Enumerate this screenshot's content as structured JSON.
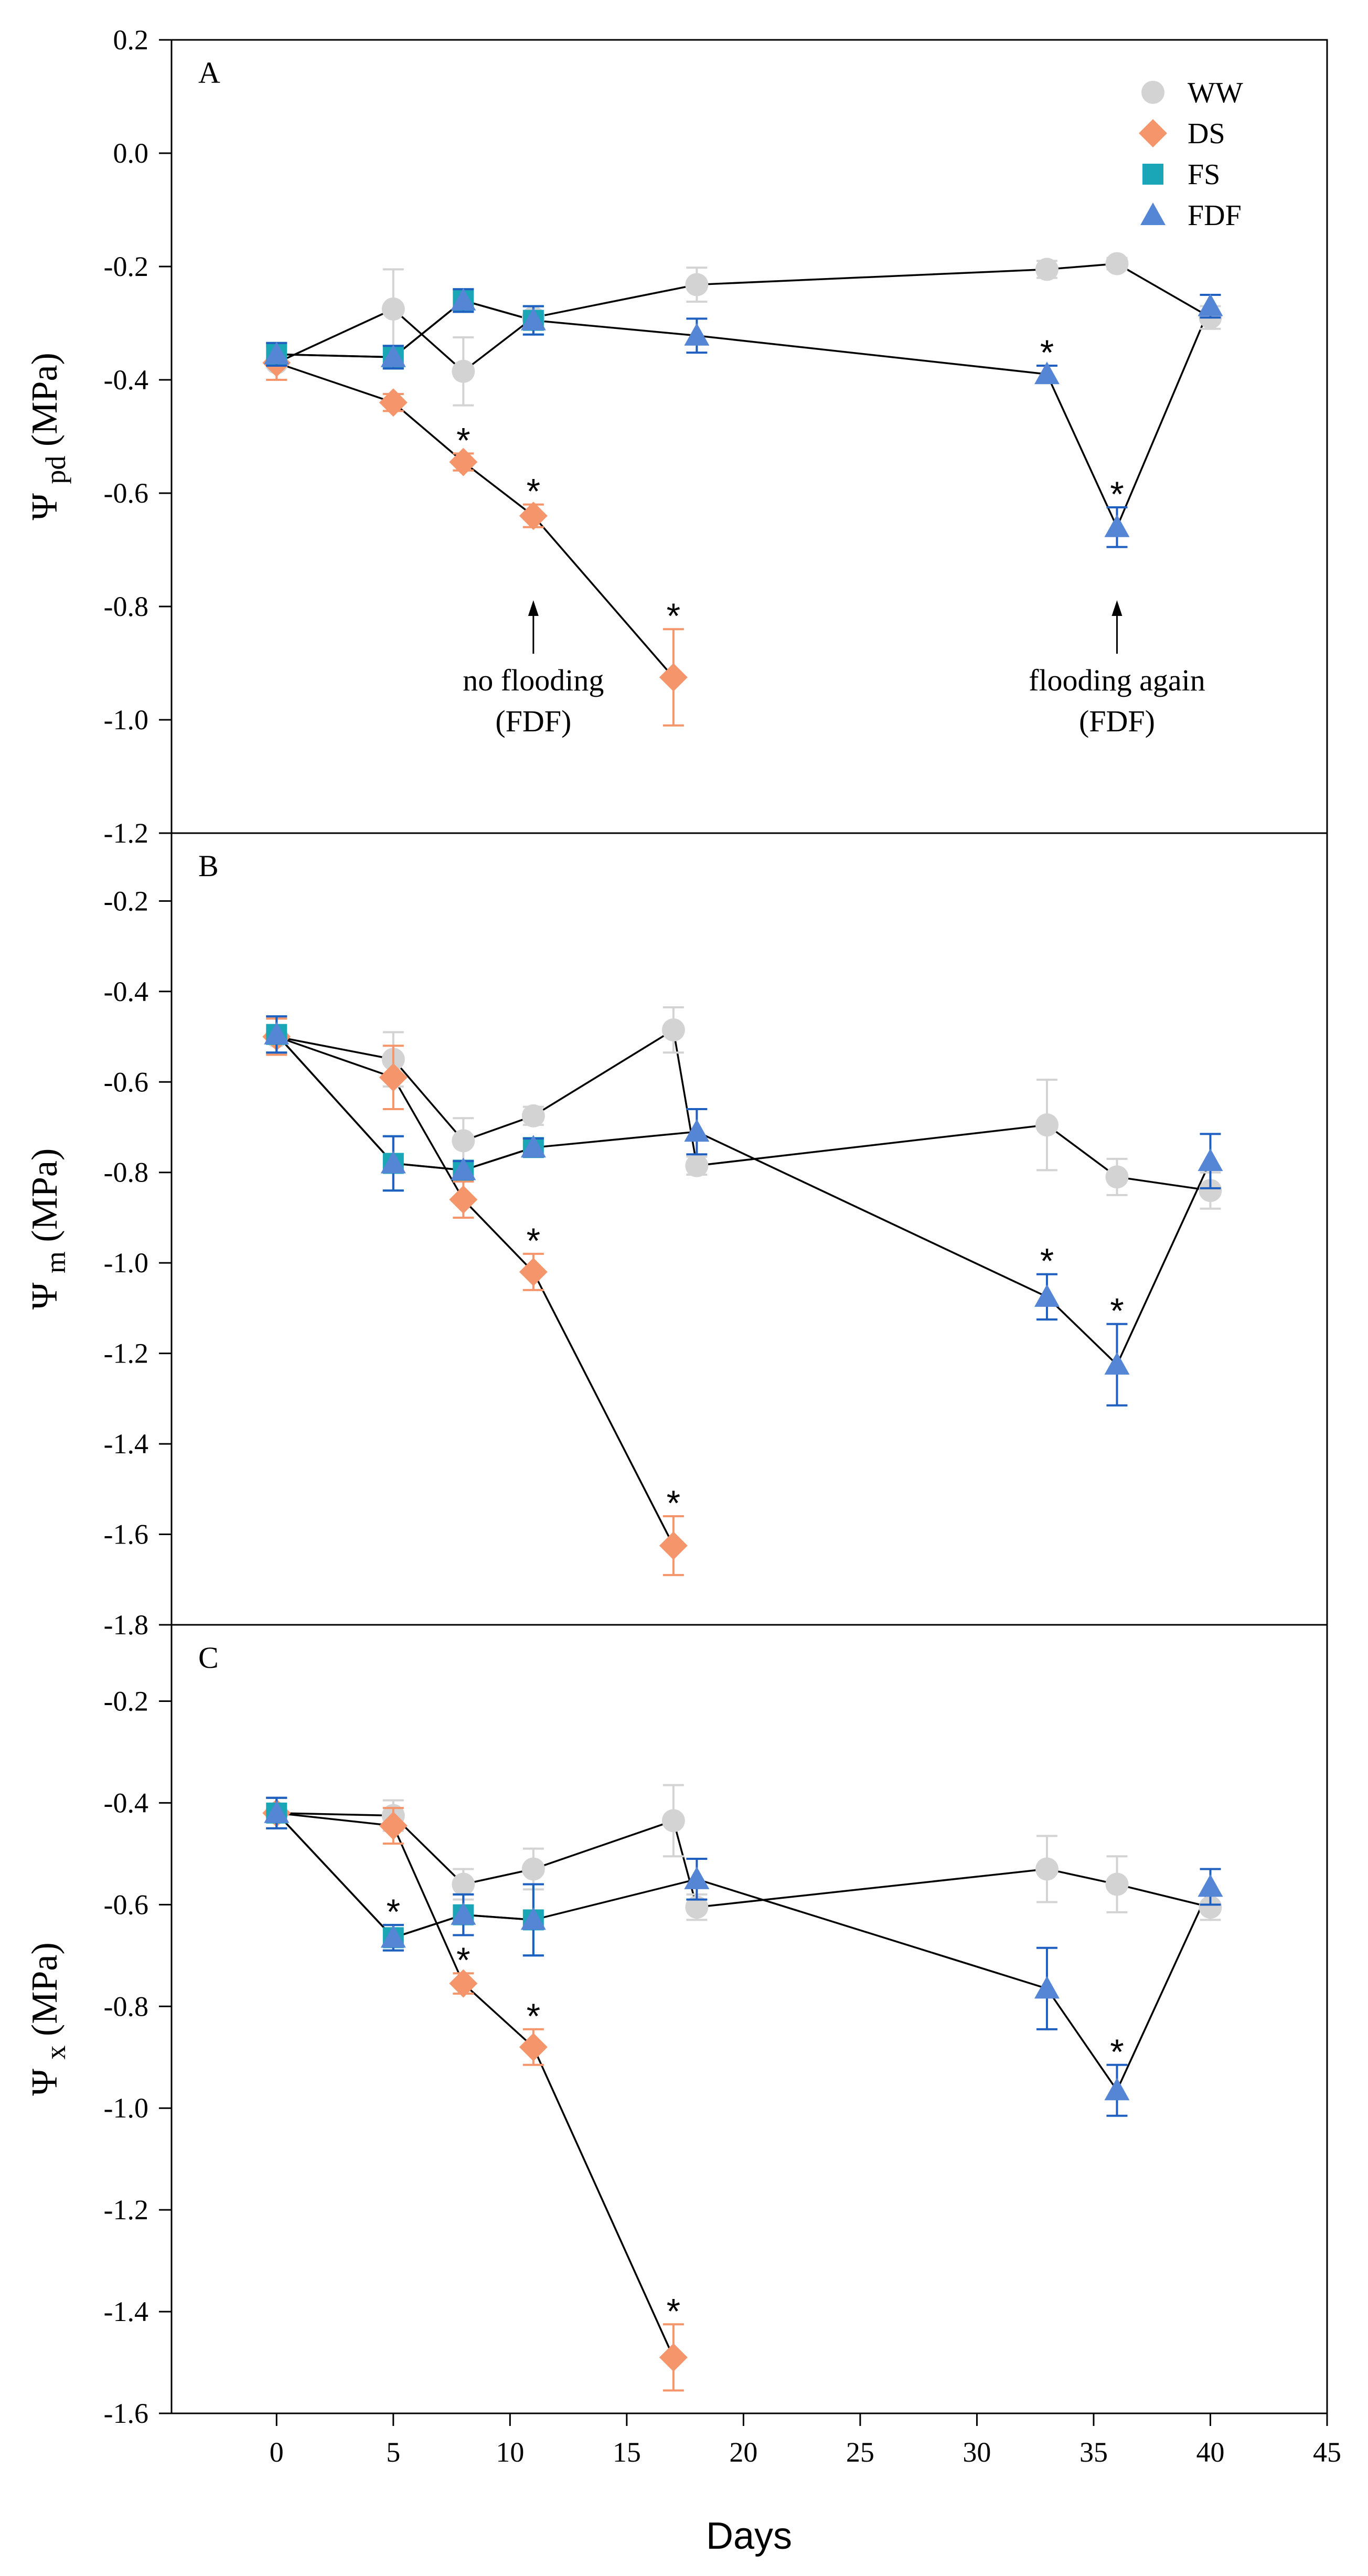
{
  "chart_data": {
    "type": "line",
    "xlabel": "Days",
    "xlim": [
      -4.5,
      45
    ],
    "xticks": [
      0,
      5,
      10,
      15,
      20,
      25,
      30,
      35,
      40,
      45
    ],
    "xtick_labels": [
      "0",
      "5",
      "10",
      "15",
      "20",
      "25",
      "30",
      "35",
      "40",
      "45"
    ],
    "legend": {
      "placement": "top-right of panel A",
      "entries": [
        {
          "key": "WW",
          "label": "WW",
          "marker": "circle",
          "color": "#d3d3d3"
        },
        {
          "key": "DS",
          "label": "DS",
          "marker": "diamond",
          "color": "#f4956b"
        },
        {
          "key": "FS",
          "label": "FS",
          "marker": "square",
          "color": "#1aa6b7"
        },
        {
          "key": "FDF",
          "label": "FDF",
          "marker": "triangle",
          "color": "#5585d5"
        }
      ]
    },
    "panels": [
      {
        "id": "A",
        "letter": "A",
        "ylabel_main": "Ψ",
        "ylabel_sub": "pd",
        "ylabel_unit": "(MPa)",
        "ylim": [
          -1.2,
          0.2
        ],
        "yticks": [
          0.2,
          0.0,
          -0.2,
          -0.4,
          -0.6,
          -0.8,
          -1.0,
          -1.2
        ],
        "ytick_labels": [
          "0.2",
          "0.0",
          "-0.2",
          "-0.4",
          "-0.6",
          "-0.8",
          "-1.0",
          "-1.2"
        ],
        "series": [
          {
            "key": "WW",
            "x": [
              0,
              5,
              8,
              11,
              18,
              33,
              36,
              40
            ],
            "y": [
              -0.37,
              -0.275,
              -0.385,
              -0.29,
              -0.232,
              -0.205,
              -0.195,
              -0.29
            ],
            "err": [
              0.03,
              0.07,
              0.06,
              0.02,
              0.03,
              0.015,
              0.01,
              0.02
            ]
          },
          {
            "key": "DS",
            "x": [
              0,
              5,
              8,
              11,
              17
            ],
            "y": [
              -0.37,
              -0.44,
              -0.545,
              -0.64,
              -0.925
            ],
            "err": [
              0.03,
              0.015,
              0.015,
              0.02,
              0.085
            ]
          },
          {
            "key": "FS",
            "x": [
              0,
              5,
              8,
              11
            ],
            "y": [
              -0.355,
              -0.36,
              -0.26,
              -0.295
            ],
            "err": [
              0.02,
              0.02,
              0.02,
              0.025
            ]
          },
          {
            "key": "FDF",
            "x": [
              0,
              5,
              8,
              11,
              18,
              33,
              36,
              40
            ],
            "y": [
              -0.355,
              -0.36,
              -0.26,
              -0.295,
              -0.322,
              -0.39,
              -0.66,
              -0.27
            ],
            "err": [
              0.02,
              0.02,
              0.02,
              0.025,
              0.03,
              0.015,
              0.035,
              0.02
            ]
          }
        ],
        "stars": [
          {
            "x": 8,
            "y": -0.545
          },
          {
            "x": 11,
            "y": -0.64
          },
          {
            "x": 17,
            "y": -0.925
          },
          {
            "x": 33,
            "y": -0.39
          },
          {
            "x": 36,
            "y": -0.66
          }
        ],
        "annotations": [
          {
            "x": 11,
            "line1": "no flooding",
            "line2": "(FDF)"
          },
          {
            "x": 36,
            "line1": "flooding again",
            "line2": "(FDF)"
          }
        ]
      },
      {
        "id": "B",
        "letter": "B",
        "ylabel_main": "Ψ",
        "ylabel_sub": "m",
        "ylabel_unit": "(MPa)",
        "ylim": [
          -1.8,
          -0.05
        ],
        "yticks": [
          -0.2,
          -0.4,
          -0.6,
          -0.8,
          -1.0,
          -1.2,
          -1.4,
          -1.6,
          -1.8
        ],
        "ytick_labels": [
          "-0.2",
          "-0.4",
          "-0.6",
          "-0.8",
          "-1.0",
          "-1.2",
          "-1.4",
          "-1.6",
          "-1.8"
        ],
        "series": [
          {
            "key": "WW",
            "x": [
              0,
              5,
              8,
              11,
              17,
              18,
              33,
              36,
              40
            ],
            "y": [
              -0.5,
              -0.55,
              -0.73,
              -0.675,
              -0.485,
              -0.785,
              -0.695,
              -0.81,
              -0.84
            ],
            "err": [
              0.04,
              0.06,
              0.05,
              0.02,
              0.05,
              0.02,
              0.1,
              0.04,
              0.04
            ]
          },
          {
            "key": "DS",
            "x": [
              0,
              5,
              8,
              11,
              17
            ],
            "y": [
              -0.5,
              -0.59,
              -0.86,
              -1.02,
              -1.625
            ],
            "err": [
              0.04,
              0.07,
              0.04,
              0.04,
              0.065
            ]
          },
          {
            "key": "FS",
            "x": [
              0,
              5,
              8,
              11
            ],
            "y": [
              -0.495,
              -0.78,
              -0.795,
              -0.745
            ],
            "err": [
              0.04,
              0.06,
              0.02,
              0.02
            ]
          },
          {
            "key": "FDF",
            "x": [
              0,
              5,
              8,
              11,
              18,
              33,
              36,
              40
            ],
            "y": [
              -0.495,
              -0.78,
              -0.795,
              -0.745,
              -0.71,
              -1.075,
              -1.225,
              -0.775
            ],
            "err": [
              0.04,
              0.06,
              0.02,
              0.02,
              0.05,
              0.05,
              0.09,
              0.06
            ]
          }
        ],
        "stars": [
          {
            "x": 11,
            "y": -1.02
          },
          {
            "x": 17,
            "y": -1.625
          },
          {
            "x": 33,
            "y": -1.075
          },
          {
            "x": 36,
            "y": -1.225
          }
        ],
        "annotations": []
      },
      {
        "id": "C",
        "letter": "C",
        "ylabel_main": "Ψ",
        "ylabel_sub": "x",
        "ylabel_unit": "(MPa)",
        "ylim": [
          -1.6,
          -0.05
        ],
        "yticks": [
          -0.2,
          -0.4,
          -0.6,
          -0.8,
          -1.0,
          -1.2,
          -1.4,
          -1.6
        ],
        "ytick_labels": [
          "-0.2",
          "-0.4",
          "-0.6",
          "-0.8",
          "-1.0",
          "-1.2",
          "-1.4",
          "-1.6"
        ],
        "series": [
          {
            "key": "WW",
            "x": [
              0,
              5,
              8,
              11,
              17,
              18,
              33,
              36,
              40
            ],
            "y": [
              -0.42,
              -0.425,
              -0.56,
              -0.53,
              -0.435,
              -0.605,
              -0.53,
              -0.56,
              -0.605
            ],
            "err": [
              0.03,
              0.03,
              0.03,
              0.04,
              0.07,
              0.025,
              0.065,
              0.055,
              0.025
            ]
          },
          {
            "key": "DS",
            "x": [
              0,
              5,
              8,
              11,
              17
            ],
            "y": [
              -0.42,
              -0.445,
              -0.755,
              -0.88,
              -1.49
            ],
            "err": [
              0.03,
              0.035,
              0.02,
              0.035,
              0.065
            ]
          },
          {
            "key": "FS",
            "x": [
              0,
              5,
              8,
              11
            ],
            "y": [
              -0.42,
              -0.665,
              -0.62,
              -0.63
            ],
            "err": [
              0.03,
              0.025,
              0.04,
              0.07
            ]
          },
          {
            "key": "FDF",
            "x": [
              0,
              5,
              8,
              11,
              18,
              33,
              36,
              40
            ],
            "y": [
              -0.42,
              -0.665,
              -0.62,
              -0.63,
              -0.55,
              -0.765,
              -0.965,
              -0.565
            ],
            "err": [
              0.03,
              0.025,
              0.04,
              0.07,
              0.04,
              0.08,
              0.05,
              0.035
            ]
          }
        ],
        "stars": [
          {
            "x": 5,
            "y": -0.665
          },
          {
            "x": 8,
            "y": -0.755
          },
          {
            "x": 11,
            "y": -0.88
          },
          {
            "x": 17,
            "y": -1.49
          },
          {
            "x": 36,
            "y": -0.965
          }
        ],
        "annotations": []
      }
    ]
  }
}
